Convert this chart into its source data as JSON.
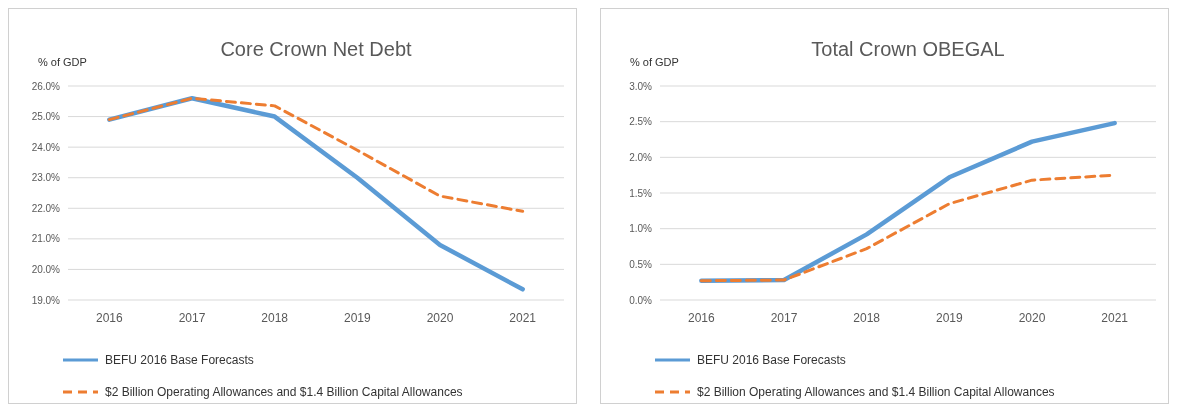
{
  "chart_data": [
    {
      "type": "line",
      "title": "Core Crown Net Debt",
      "ylabel": "% of GDP",
      "categories": [
        "2016",
        "2017",
        "2018",
        "2019",
        "2020",
        "2021"
      ],
      "series": [
        {
          "name": "BEFU 2016 Base Forecasts",
          "color": "#5b9bd5",
          "line_style": "solid",
          "values": [
            24.9,
            25.6,
            25.0,
            23.0,
            20.8,
            19.35
          ]
        },
        {
          "name": "$2 Billion Operating Allowances and $1.4 Billion Capital Allowances",
          "color": "#ed7d31",
          "line_style": "dashed",
          "values": [
            24.9,
            25.6,
            25.35,
            23.9,
            22.4,
            21.9
          ]
        }
      ],
      "ylim": [
        19,
        26
      ],
      "yticks": [
        {
          "value": 19,
          "label": "19.0%"
        },
        {
          "value": 20,
          "label": "20.0%"
        },
        {
          "value": 21,
          "label": "21.0%"
        },
        {
          "value": 22,
          "label": "22.0%"
        },
        {
          "value": 23,
          "label": "23.0%"
        },
        {
          "value": 24,
          "label": "24.0%"
        },
        {
          "value": 25,
          "label": "25.0%"
        },
        {
          "value": 26,
          "label": "26.0%"
        }
      ],
      "grid": "y",
      "legend": "bottom"
    },
    {
      "type": "line",
      "title": "Total Crown OBEGAL",
      "ylabel": "% of GDP",
      "categories": [
        "2016",
        "2017",
        "2018",
        "2019",
        "2020",
        "2021"
      ],
      "series": [
        {
          "name": "BEFU 2016 Base Forecasts",
          "color": "#5b9bd5",
          "line_style": "solid",
          "values": [
            0.27,
            0.28,
            0.92,
            1.72,
            2.22,
            2.48
          ]
        },
        {
          "name": "$2 Billion Operating Allowances and $1.4 Billion Capital Allowances",
          "color": "#ed7d31",
          "line_style": "dashed",
          "values": [
            0.27,
            0.28,
            0.72,
            1.35,
            1.68,
            1.75
          ]
        }
      ],
      "ylim": [
        0,
        3
      ],
      "yticks": [
        {
          "value": 0,
          "label": "0.0%"
        },
        {
          "value": 0.5,
          "label": "0.5%"
        },
        {
          "value": 1,
          "label": "1.0%"
        },
        {
          "value": 1.5,
          "label": "1.5%"
        },
        {
          "value": 2,
          "label": "2.0%"
        },
        {
          "value": 2.5,
          "label": "2.5%"
        },
        {
          "value": 3,
          "label": "3.0%"
        }
      ],
      "grid": "y",
      "legend": "bottom"
    }
  ]
}
